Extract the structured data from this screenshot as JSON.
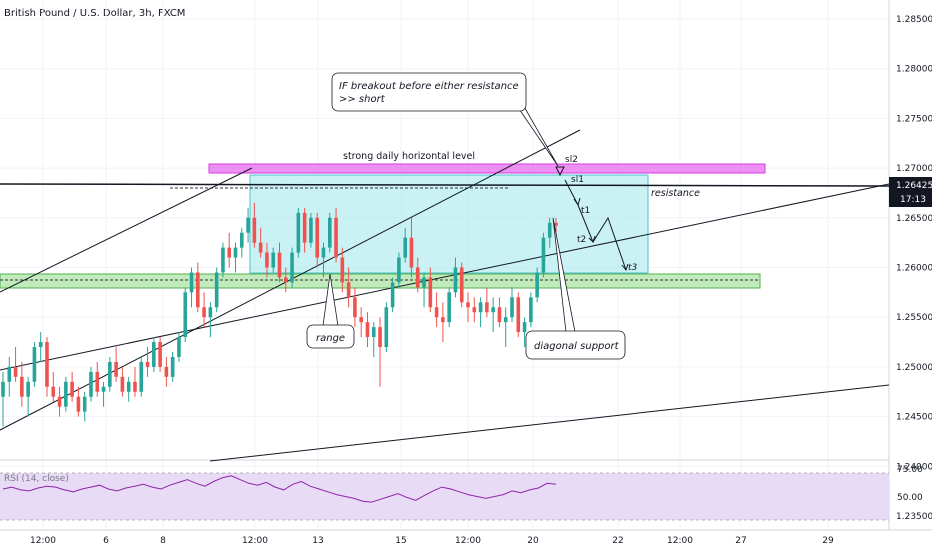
{
  "header": {
    "title": "British Pound / U.S. Dollar, 3h, FXCM"
  },
  "price_axis": {
    "ticks": [
      "1.28500",
      "1.28000",
      "1.27500",
      "1.27000",
      "1.26500",
      "1.26000",
      "1.25500",
      "1.25000",
      "1.24500",
      "1.24000",
      "1.23500"
    ],
    "last_price": "1.26425",
    "countdown": "17:13"
  },
  "time_axis": {
    "labels": [
      "12:00",
      "6",
      "8",
      "12:00",
      "13",
      "15",
      "12:00",
      "20",
      "22",
      "12:00",
      "27",
      "29"
    ]
  },
  "rsi": {
    "label": "RSI (14, close)",
    "ticks": [
      "75.00",
      "50.00"
    ]
  },
  "annotations": {
    "callout_breakout_line1": "IF breakout before either resistance",
    "callout_breakout_line2": ">> short",
    "horizontal_level": "strong daily horizontal level",
    "sl2": "sl2",
    "sl1": "sl1",
    "resistance": "resistance",
    "t1": "t1",
    "t2": "t2",
    "t3": "t3",
    "range": "range",
    "diagonal_support": "diagonal support"
  },
  "colors": {
    "up": "#26a69a",
    "down": "#ef5350",
    "zone_top": "#e040fb",
    "zone_range": "#80deea",
    "zone_support": "#a5e5a0",
    "rsi_line": "#8e24aa",
    "rsi_band": "#e8dbf5",
    "price_tag": "#131722"
  },
  "chart_data": {
    "type": "candlestick",
    "symbol": "GBPUSD",
    "timeframe": "3h",
    "ylim": [
      1.232,
      1.289
    ],
    "candles": [
      [
        1.247,
        1.2495,
        1.244,
        1.2485
      ],
      [
        1.2485,
        1.251,
        1.247,
        1.25
      ],
      [
        1.25,
        1.252,
        1.2485,
        1.249
      ],
      [
        1.249,
        1.2505,
        1.246,
        1.247
      ],
      [
        1.247,
        1.249,
        1.245,
        1.2485
      ],
      [
        1.2485,
        1.2525,
        1.248,
        1.252
      ],
      [
        1.252,
        1.2535,
        1.2505,
        1.2525
      ],
      [
        1.2525,
        1.253,
        1.247,
        1.248
      ],
      [
        1.248,
        1.2495,
        1.2465,
        1.247
      ],
      [
        1.247,
        1.248,
        1.245,
        1.246
      ],
      [
        1.246,
        1.249,
        1.2455,
        1.2485
      ],
      [
        1.2485,
        1.2495,
        1.2465,
        1.247
      ],
      [
        1.247,
        1.248,
        1.245,
        1.2455
      ],
      [
        1.2455,
        1.2475,
        1.2445,
        1.247
      ],
      [
        1.247,
        1.25,
        1.2465,
        1.2495
      ],
      [
        1.2495,
        1.2505,
        1.247,
        1.2475
      ],
      [
        1.2475,
        1.2485,
        1.246,
        1.248
      ],
      [
        1.248,
        1.251,
        1.2475,
        1.2505
      ],
      [
        1.2505,
        1.252,
        1.2485,
        1.249
      ],
      [
        1.249,
        1.25,
        1.247,
        1.2475
      ],
      [
        1.2475,
        1.249,
        1.2465,
        1.2485
      ],
      [
        1.2485,
        1.25,
        1.247,
        1.2475
      ],
      [
        1.2475,
        1.251,
        1.247,
        1.2505
      ],
      [
        1.2505,
        1.252,
        1.249,
        1.25
      ],
      [
        1.25,
        1.253,
        1.2495,
        1.2525
      ],
      [
        1.2525,
        1.253,
        1.2495,
        1.25
      ],
      [
        1.25,
        1.251,
        1.248,
        1.249
      ],
      [
        1.249,
        1.2515,
        1.2485,
        1.251
      ],
      [
        1.251,
        1.2535,
        1.2505,
        1.253
      ],
      [
        1.253,
        1.258,
        1.2525,
        1.2575
      ],
      [
        1.2575,
        1.26,
        1.256,
        1.2595
      ],
      [
        1.2595,
        1.2605,
        1.2555,
        1.256
      ],
      [
        1.256,
        1.2575,
        1.254,
        1.255
      ],
      [
        1.255,
        1.2565,
        1.253,
        1.256
      ],
      [
        1.256,
        1.26,
        1.2555,
        1.2595
      ],
      [
        1.2595,
        1.2625,
        1.259,
        1.262
      ],
      [
        1.262,
        1.2635,
        1.26,
        1.261
      ],
      [
        1.261,
        1.2625,
        1.2595,
        1.262
      ],
      [
        1.262,
        1.264,
        1.261,
        1.2635
      ],
      [
        1.2635,
        1.266,
        1.2625,
        1.265
      ],
      [
        1.265,
        1.2665,
        1.262,
        1.2625
      ],
      [
        1.2625,
        1.264,
        1.261,
        1.2615
      ],
      [
        1.2615,
        1.2625,
        1.259,
        1.26
      ],
      [
        1.26,
        1.262,
        1.2595,
        1.2615
      ],
      [
        1.2615,
        1.2625,
        1.2585,
        1.259
      ],
      [
        1.259,
        1.26,
        1.2575,
        1.2585
      ],
      [
        1.2585,
        1.262,
        1.258,
        1.2615
      ],
      [
        1.2615,
        1.266,
        1.261,
        1.2655
      ],
      [
        1.2655,
        1.266,
        1.2615,
        1.2625
      ],
      [
        1.2625,
        1.2655,
        1.262,
        1.265
      ],
      [
        1.265,
        1.2655,
        1.26,
        1.261
      ],
      [
        1.261,
        1.2625,
        1.259,
        1.262
      ],
      [
        1.262,
        1.2655,
        1.2615,
        1.265
      ],
      [
        1.265,
        1.266,
        1.2605,
        1.261
      ],
      [
        1.261,
        1.262,
        1.2575,
        1.2585
      ],
      [
        1.2585,
        1.26,
        1.256,
        1.257
      ],
      [
        1.257,
        1.258,
        1.254,
        1.255
      ],
      [
        1.255,
        1.256,
        1.253,
        1.2545
      ],
      [
        1.2545,
        1.2555,
        1.252,
        1.253
      ],
      [
        1.253,
        1.2545,
        1.251,
        1.254
      ],
      [
        1.254,
        1.255,
        1.248,
        1.252
      ],
      [
        1.252,
        1.2565,
        1.2515,
        1.256
      ],
      [
        1.256,
        1.259,
        1.2555,
        1.2585
      ],
      [
        1.2585,
        1.2615,
        1.258,
        1.261
      ],
      [
        1.261,
        1.264,
        1.2605,
        1.263
      ],
      [
        1.263,
        1.265,
        1.259,
        1.26
      ],
      [
        1.26,
        1.261,
        1.2575,
        1.258
      ],
      [
        1.258,
        1.2595,
        1.256,
        1.259
      ],
      [
        1.259,
        1.26,
        1.2555,
        1.256
      ],
      [
        1.256,
        1.2575,
        1.254,
        1.255
      ],
      [
        1.255,
        1.2565,
        1.2525,
        1.2545
      ],
      [
        1.2545,
        1.258,
        1.254,
        1.2575
      ],
      [
        1.2575,
        1.261,
        1.257,
        1.26
      ],
      [
        1.26,
        1.2605,
        1.256,
        1.2565
      ],
      [
        1.2565,
        1.2575,
        1.2545,
        1.256
      ],
      [
        1.256,
        1.257,
        1.2545,
        1.2555
      ],
      [
        1.2555,
        1.257,
        1.254,
        1.2565
      ],
      [
        1.2565,
        1.258,
        1.255,
        1.2555
      ],
      [
        1.2555,
        1.257,
        1.2535,
        1.256
      ],
      [
        1.256,
        1.257,
        1.254,
        1.2545
      ],
      [
        1.2545,
        1.256,
        1.252,
        1.255
      ],
      [
        1.255,
        1.258,
        1.2545,
        1.257
      ],
      [
        1.257,
        1.2575,
        1.253,
        1.2535
      ],
      [
        1.2535,
        1.255,
        1.252,
        1.2545
      ],
      [
        1.2545,
        1.2575,
        1.254,
        1.257
      ],
      [
        1.257,
        1.26,
        1.2565,
        1.2595
      ],
      [
        1.2595,
        1.2635,
        1.259,
        1.263
      ],
      [
        1.263,
        1.265,
        1.262,
        1.2645
      ],
      [
        1.2645,
        1.265,
        1.263,
        1.2642
      ]
    ],
    "rsi": [
      58,
      60,
      57,
      56,
      59,
      61,
      60,
      57,
      55,
      58,
      60,
      62,
      58,
      56,
      59,
      61,
      63,
      60,
      58,
      62,
      65,
      68,
      64,
      61,
      66,
      70,
      72,
      68,
      64,
      62,
      65,
      60,
      57,
      63,
      66,
      61,
      58,
      55,
      52,
      50,
      48,
      45,
      44,
      47,
      50,
      53,
      49,
      46,
      51,
      56,
      60,
      58,
      55,
      52,
      50,
      48,
      50,
      52,
      56,
      54,
      57,
      59,
      64,
      63
    ],
    "levels": {
      "strong_daily_horizontal": [
        1.2658,
        1.2668
      ],
      "range_box": [
        1.2533,
        1.2655
      ],
      "support_zone": [
        1.2517,
        1.253
      ],
      "resistance_line": 1.26425
    }
  }
}
